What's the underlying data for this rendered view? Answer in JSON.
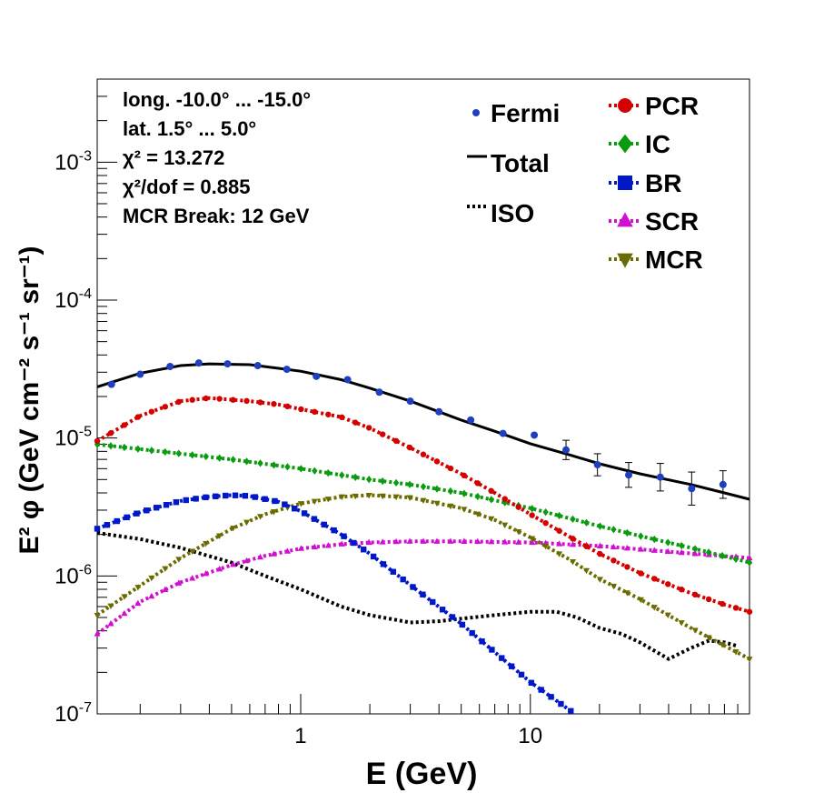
{
  "chart_data": {
    "type": "line",
    "log_x": true,
    "log_y": true,
    "xlabel": "E (GeV)",
    "ylabel": "E² φ (GeV cm⁻² s⁻¹ sr⁻¹)",
    "xlim": [
      0.13,
      90
    ],
    "ylim": [
      1e-07,
      0.004
    ],
    "x_ticks": [
      {
        "v": 1,
        "label": "1"
      },
      {
        "v": 10,
        "label": "10"
      }
    ],
    "y_ticks": [
      {
        "v": 1e-07,
        "base": "10",
        "exp": "-7"
      },
      {
        "v": 1e-06,
        "base": "10",
        "exp": "-6"
      },
      {
        "v": 1e-05,
        "base": "10",
        "exp": "-5"
      },
      {
        "v": 0.0001,
        "base": "10",
        "exp": "-4"
      },
      {
        "v": 0.001,
        "base": "10",
        "exp": "-3"
      }
    ],
    "info_lines": [
      "long. -10.0° ... -15.0°",
      "lat. 1.5° ... 5.0°",
      "χ² = 13.272",
      "χ²/dof = 0.885",
      "MCR Break: 12 GeV"
    ],
    "fermi": {
      "name": "Fermi",
      "color": "#1f3fbf",
      "points": [
        {
          "x": 0.15,
          "y": 2.45e-05,
          "err": 0
        },
        {
          "x": 0.2,
          "y": 2.9e-05,
          "err": 0
        },
        {
          "x": 0.27,
          "y": 3.3e-05,
          "err": 0
        },
        {
          "x": 0.36,
          "y": 3.5e-05,
          "err": 0
        },
        {
          "x": 0.48,
          "y": 3.45e-05,
          "err": 0
        },
        {
          "x": 0.65,
          "y": 3.35e-05,
          "err": 0
        },
        {
          "x": 0.87,
          "y": 3.15e-05,
          "err": 0
        },
        {
          "x": 1.17,
          "y": 2.8e-05,
          "err": 0
        },
        {
          "x": 1.6,
          "y": 2.65e-05,
          "err": 0
        },
        {
          "x": 2.2,
          "y": 2.15e-05,
          "err": 0
        },
        {
          "x": 3.0,
          "y": 1.85e-05,
          "err": 0
        },
        {
          "x": 4.0,
          "y": 1.55e-05,
          "err": 0
        },
        {
          "x": 5.5,
          "y": 1.35e-05,
          "err": 0
        },
        {
          "x": 7.6,
          "y": 1.08e-05,
          "err": 0
        },
        {
          "x": 10.4,
          "y": 1.05e-05,
          "err": 0
        },
        {
          "x": 14.3,
          "y": 8.2e-06,
          "err": 0.07
        },
        {
          "x": 19.6,
          "y": 6.4e-06,
          "err": 0.08
        },
        {
          "x": 26.8,
          "y": 5.4e-06,
          "err": 0.09
        },
        {
          "x": 36.8,
          "y": 5.2e-06,
          "err": 0.1
        },
        {
          "x": 50.4,
          "y": 4.3e-06,
          "err": 0.12
        },
        {
          "x": 69.0,
          "y": 4.6e-06,
          "err": 0.1
        }
      ]
    },
    "series": [
      {
        "name": "Total",
        "color": "#000000",
        "style": "solid",
        "marker": "none",
        "x": [
          0.13,
          0.2,
          0.3,
          0.4,
          0.6,
          0.8,
          1.0,
          1.5,
          2.0,
          3.0,
          5.0,
          7.0,
          10,
          15,
          20,
          30,
          50,
          70,
          90
        ],
        "y": [
          2.35e-05,
          2.95e-05,
          3.35e-05,
          3.45e-05,
          3.4e-05,
          3.2e-05,
          3.05e-05,
          2.65e-05,
          2.3e-05,
          1.85e-05,
          1.35e-05,
          1.12e-05,
          9.1e-06,
          7.5e-06,
          6.5e-06,
          5.5e-06,
          4.6e-06,
          4e-06,
          3.6e-06
        ]
      },
      {
        "name": "PCR",
        "color": "#d40000",
        "style": "dotted",
        "marker": "circle",
        "x": [
          0.13,
          0.2,
          0.3,
          0.4,
          0.6,
          0.8,
          1.0,
          1.5,
          2.0,
          3.0,
          5.0,
          7.0,
          10,
          15,
          20,
          30,
          50,
          70,
          90
        ],
        "y": [
          9.5e-06,
          1.45e-05,
          1.85e-05,
          1.95e-05,
          1.85e-05,
          1.75e-05,
          1.62e-05,
          1.42e-05,
          1.18e-05,
          8.5e-06,
          5.5e-06,
          4e-06,
          2.8e-06,
          1.9e-06,
          1.45e-06,
          1.05e-06,
          7.5e-07,
          6.2e-07,
          5.5e-07
        ]
      },
      {
        "name": "IC",
        "color": "#0a9b10",
        "style": "dotted",
        "marker": "diamond",
        "x": [
          0.13,
          0.2,
          0.3,
          0.5,
          1.0,
          2.0,
          3.0,
          5.0,
          10,
          20,
          30,
          50,
          90
        ],
        "y": [
          9e-06,
          8.3e-06,
          7.7e-06,
          7e-06,
          6e-06,
          5e-06,
          4.6e-06,
          4e-06,
          3.1e-06,
          2.3e-06,
          1.95e-06,
          1.6e-06,
          1.25e-06
        ]
      },
      {
        "name": "BR",
        "color": "#0018c8",
        "style": "dotted",
        "marker": "square",
        "x": [
          0.13,
          0.2,
          0.3,
          0.4,
          0.5,
          0.6,
          0.8,
          1.0,
          1.5,
          2.0,
          3.0,
          5.0,
          7.0,
          10,
          15
        ],
        "y": [
          2.2e-06,
          2.9e-06,
          3.5e-06,
          3.75e-06,
          3.85e-06,
          3.8e-06,
          3.45e-06,
          2.95e-06,
          2e-06,
          1.45e-06,
          8.6e-07,
          4.5e-07,
          2.8e-07,
          1.7e-07,
          1.05e-07
        ]
      },
      {
        "name": "SCR",
        "color": "#d010d0",
        "style": "dotted",
        "marker": "triangle",
        "x": [
          0.13,
          0.2,
          0.3,
          0.5,
          0.7,
          1.0,
          1.5,
          2.0,
          3.0,
          5.0,
          10,
          20,
          40,
          90
        ],
        "y": [
          3.8e-07,
          6.5e-07,
          9e-07,
          1.2e-06,
          1.4e-06,
          1.58e-06,
          1.7e-06,
          1.75e-06,
          1.78e-06,
          1.78e-06,
          1.75e-06,
          1.65e-06,
          1.5e-06,
          1.35e-06
        ]
      },
      {
        "name": "MCR",
        "color": "#6b6b00",
        "style": "dotted",
        "marker": "triangle-down",
        "x": [
          0.13,
          0.2,
          0.3,
          0.5,
          0.7,
          1.0,
          1.5,
          2.0,
          3.0,
          5.0,
          7.0,
          10,
          15,
          20,
          30,
          50,
          90
        ],
        "y": [
          5.2e-07,
          8.5e-07,
          1.35e-06,
          2.2e-06,
          2.8e-06,
          3.35e-06,
          3.75e-06,
          3.85e-06,
          3.7e-06,
          3.1e-06,
          2.55e-06,
          1.9e-06,
          1.3e-06,
          9.5e-07,
          6.8e-07,
          4.2e-07,
          2.5e-07
        ]
      },
      {
        "name": "ISO",
        "color": "#000000",
        "style": "dotted",
        "marker": "none",
        "x": [
          0.13,
          0.2,
          0.3,
          0.5,
          0.7,
          1.0,
          1.5,
          2.0,
          3.0,
          4.0,
          5.0,
          7.0,
          10,
          13,
          16,
          20,
          25,
          30,
          40,
          50,
          60,
          70,
          80
        ],
        "y": [
          2.05e-06,
          1.85e-06,
          1.6e-06,
          1.25e-06,
          1e-06,
          8e-07,
          6e-07,
          5.2e-07,
          4.6e-07,
          4.7e-07,
          4.9e-07,
          5.2e-07,
          5.5e-07,
          5.5e-07,
          5e-07,
          4.2e-07,
          3.8e-07,
          3.3e-07,
          2.5e-07,
          3e-07,
          3.4e-07,
          3.3e-07,
          3.1e-07
        ]
      }
    ],
    "legend_left": [
      "Fermi",
      "Total",
      "ISO"
    ],
    "legend_right": [
      "PCR",
      "IC",
      "BR",
      "SCR",
      "MCR"
    ]
  }
}
